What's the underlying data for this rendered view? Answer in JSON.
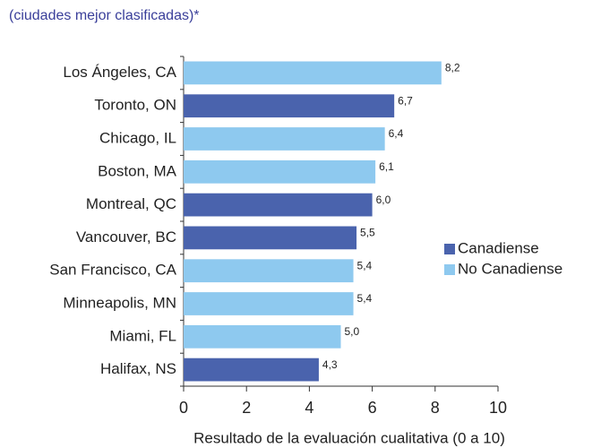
{
  "chart_data": {
    "type": "barh",
    "title": "(ciudades mejor clasificadas)*",
    "x_label": "Resultado de la evaluación cualitativa (0 a 10)",
    "categories": [
      "Los Ángeles, CA",
      "Toronto, ON",
      "Chicago, IL",
      "Boston, MA",
      "Montreal, QC",
      "Vancouver, BC",
      "San Francisco, CA",
      "Minneapolis, MN",
      "Miami, FL",
      "Halifax,  NS"
    ],
    "series": [
      {
        "name": "Canadiense",
        "color": "#4a63ad",
        "values": [
          null,
          6.7,
          null,
          null,
          6.0,
          5.5,
          null,
          null,
          null,
          4.3
        ],
        "value_labels": [
          null,
          "6,7",
          null,
          null,
          "6,0",
          "5,5",
          null,
          null,
          null,
          "4,3"
        ]
      },
      {
        "name": "No Canadiense",
        "color": "#8ec9ef",
        "values": [
          8.2,
          null,
          6.4,
          6.1,
          null,
          null,
          5.4,
          5.4,
          5.0,
          null
        ],
        "value_labels": [
          "8,2",
          null,
          "6,4",
          "6,1",
          null,
          null,
          "5,4",
          "5,4",
          "5,0",
          null
        ]
      }
    ],
    "xlim": [
      0,
      10
    ],
    "xticks": [
      0,
      2,
      4,
      6,
      8,
      10
    ],
    "legend": "right"
  }
}
